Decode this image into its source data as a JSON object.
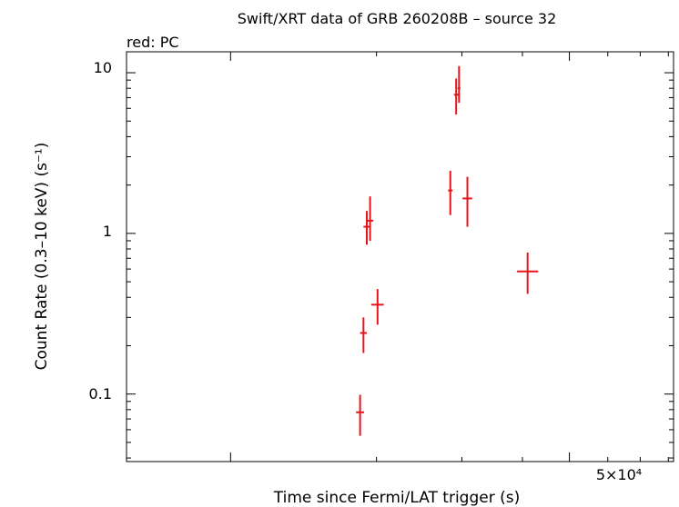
{
  "chart_data": {
    "type": "scatter",
    "title": "Swift/XRT data of GRB 260208B – source 32",
    "subtitle": "red: PC",
    "xlabel": "Time since Fermi/LAT trigger (s)",
    "ylabel": "Count Rate (0.3–10 keV) (s⁻¹)",
    "x_scale": "log",
    "y_scale": "log",
    "xlim": [
      6100,
      82000
    ],
    "ylim": [
      0.038,
      13.5
    ],
    "x_tick_label": "5×10⁴",
    "y_tick_labels": [
      "10",
      "1",
      "0.1"
    ],
    "y_ticks": [
      10,
      1,
      0.1
    ],
    "grid": false,
    "series": [
      {
        "color": "#e8141c",
        "points": [
          {
            "x": 18500,
            "xerr_lo": 350,
            "xerr_hi": 350,
            "y": 0.077,
            "yerr_lo": 0.022,
            "yerr_hi": 0.022
          },
          {
            "x": 18800,
            "xerr_lo": 300,
            "xerr_hi": 300,
            "y": 0.24,
            "yerr_lo": 0.06,
            "yerr_hi": 0.06
          },
          {
            "x": 19100,
            "xerr_lo": 300,
            "xerr_hi": 300,
            "y": 1.1,
            "yerr_lo": 0.25,
            "yerr_hi": 0.28
          },
          {
            "x": 19400,
            "xerr_lo": 300,
            "xerr_hi": 300,
            "y": 1.2,
            "yerr_lo": 0.3,
            "yerr_hi": 0.5
          },
          {
            "x": 20100,
            "xerr_lo": 600,
            "xerr_hi": 600,
            "y": 0.36,
            "yerr_lo": 0.09,
            "yerr_hi": 0.09
          },
          {
            "x": 28400,
            "xerr_lo": 300,
            "xerr_hi": 300,
            "y": 1.85,
            "yerr_lo": 0.55,
            "yerr_hi": 0.6
          },
          {
            "x": 29200,
            "xerr_lo": 300,
            "xerr_hi": 300,
            "y": 7.3,
            "yerr_lo": 1.8,
            "yerr_hi": 1.9
          },
          {
            "x": 29600,
            "xerr_lo": 200,
            "xerr_hi": 200,
            "y": 8.0,
            "yerr_lo": 1.5,
            "yerr_hi": 3.0
          },
          {
            "x": 30800,
            "xerr_lo": 700,
            "xerr_hi": 700,
            "y": 1.65,
            "yerr_lo": 0.55,
            "yerr_hi": 0.6
          },
          {
            "x": 41000,
            "xerr_lo": 2000,
            "xerr_hi": 2100,
            "y": 0.58,
            "yerr_lo": 0.16,
            "yerr_hi": 0.18
          }
        ]
      }
    ]
  }
}
